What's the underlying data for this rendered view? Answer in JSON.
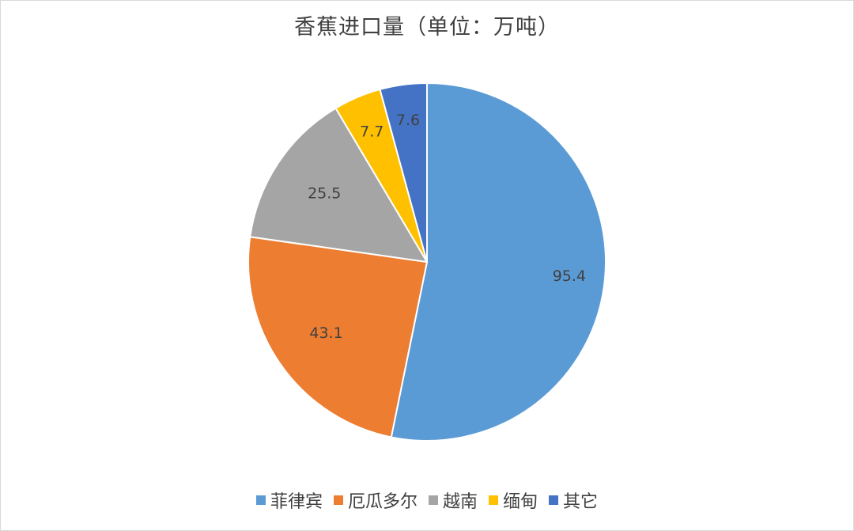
{
  "chart_data": {
    "type": "pie",
    "title": "香蕉进口量（单位：万吨）",
    "categories": [
      "菲律宾",
      "厄瓜多尔",
      "越南",
      "缅甸",
      "其它"
    ],
    "values": [
      95.4,
      43.1,
      25.5,
      7.7,
      7.6
    ],
    "labels": [
      "95.4",
      "43.1",
      "25.5",
      "7.7",
      "7.6"
    ],
    "colors": [
      "#5b9bd5",
      "#ed7d31",
      "#a5a5a5",
      "#ffc000",
      "#4472c4"
    ],
    "start_angle": "12 o'clock",
    "direction": "clockwise",
    "legend_position": "bottom"
  }
}
